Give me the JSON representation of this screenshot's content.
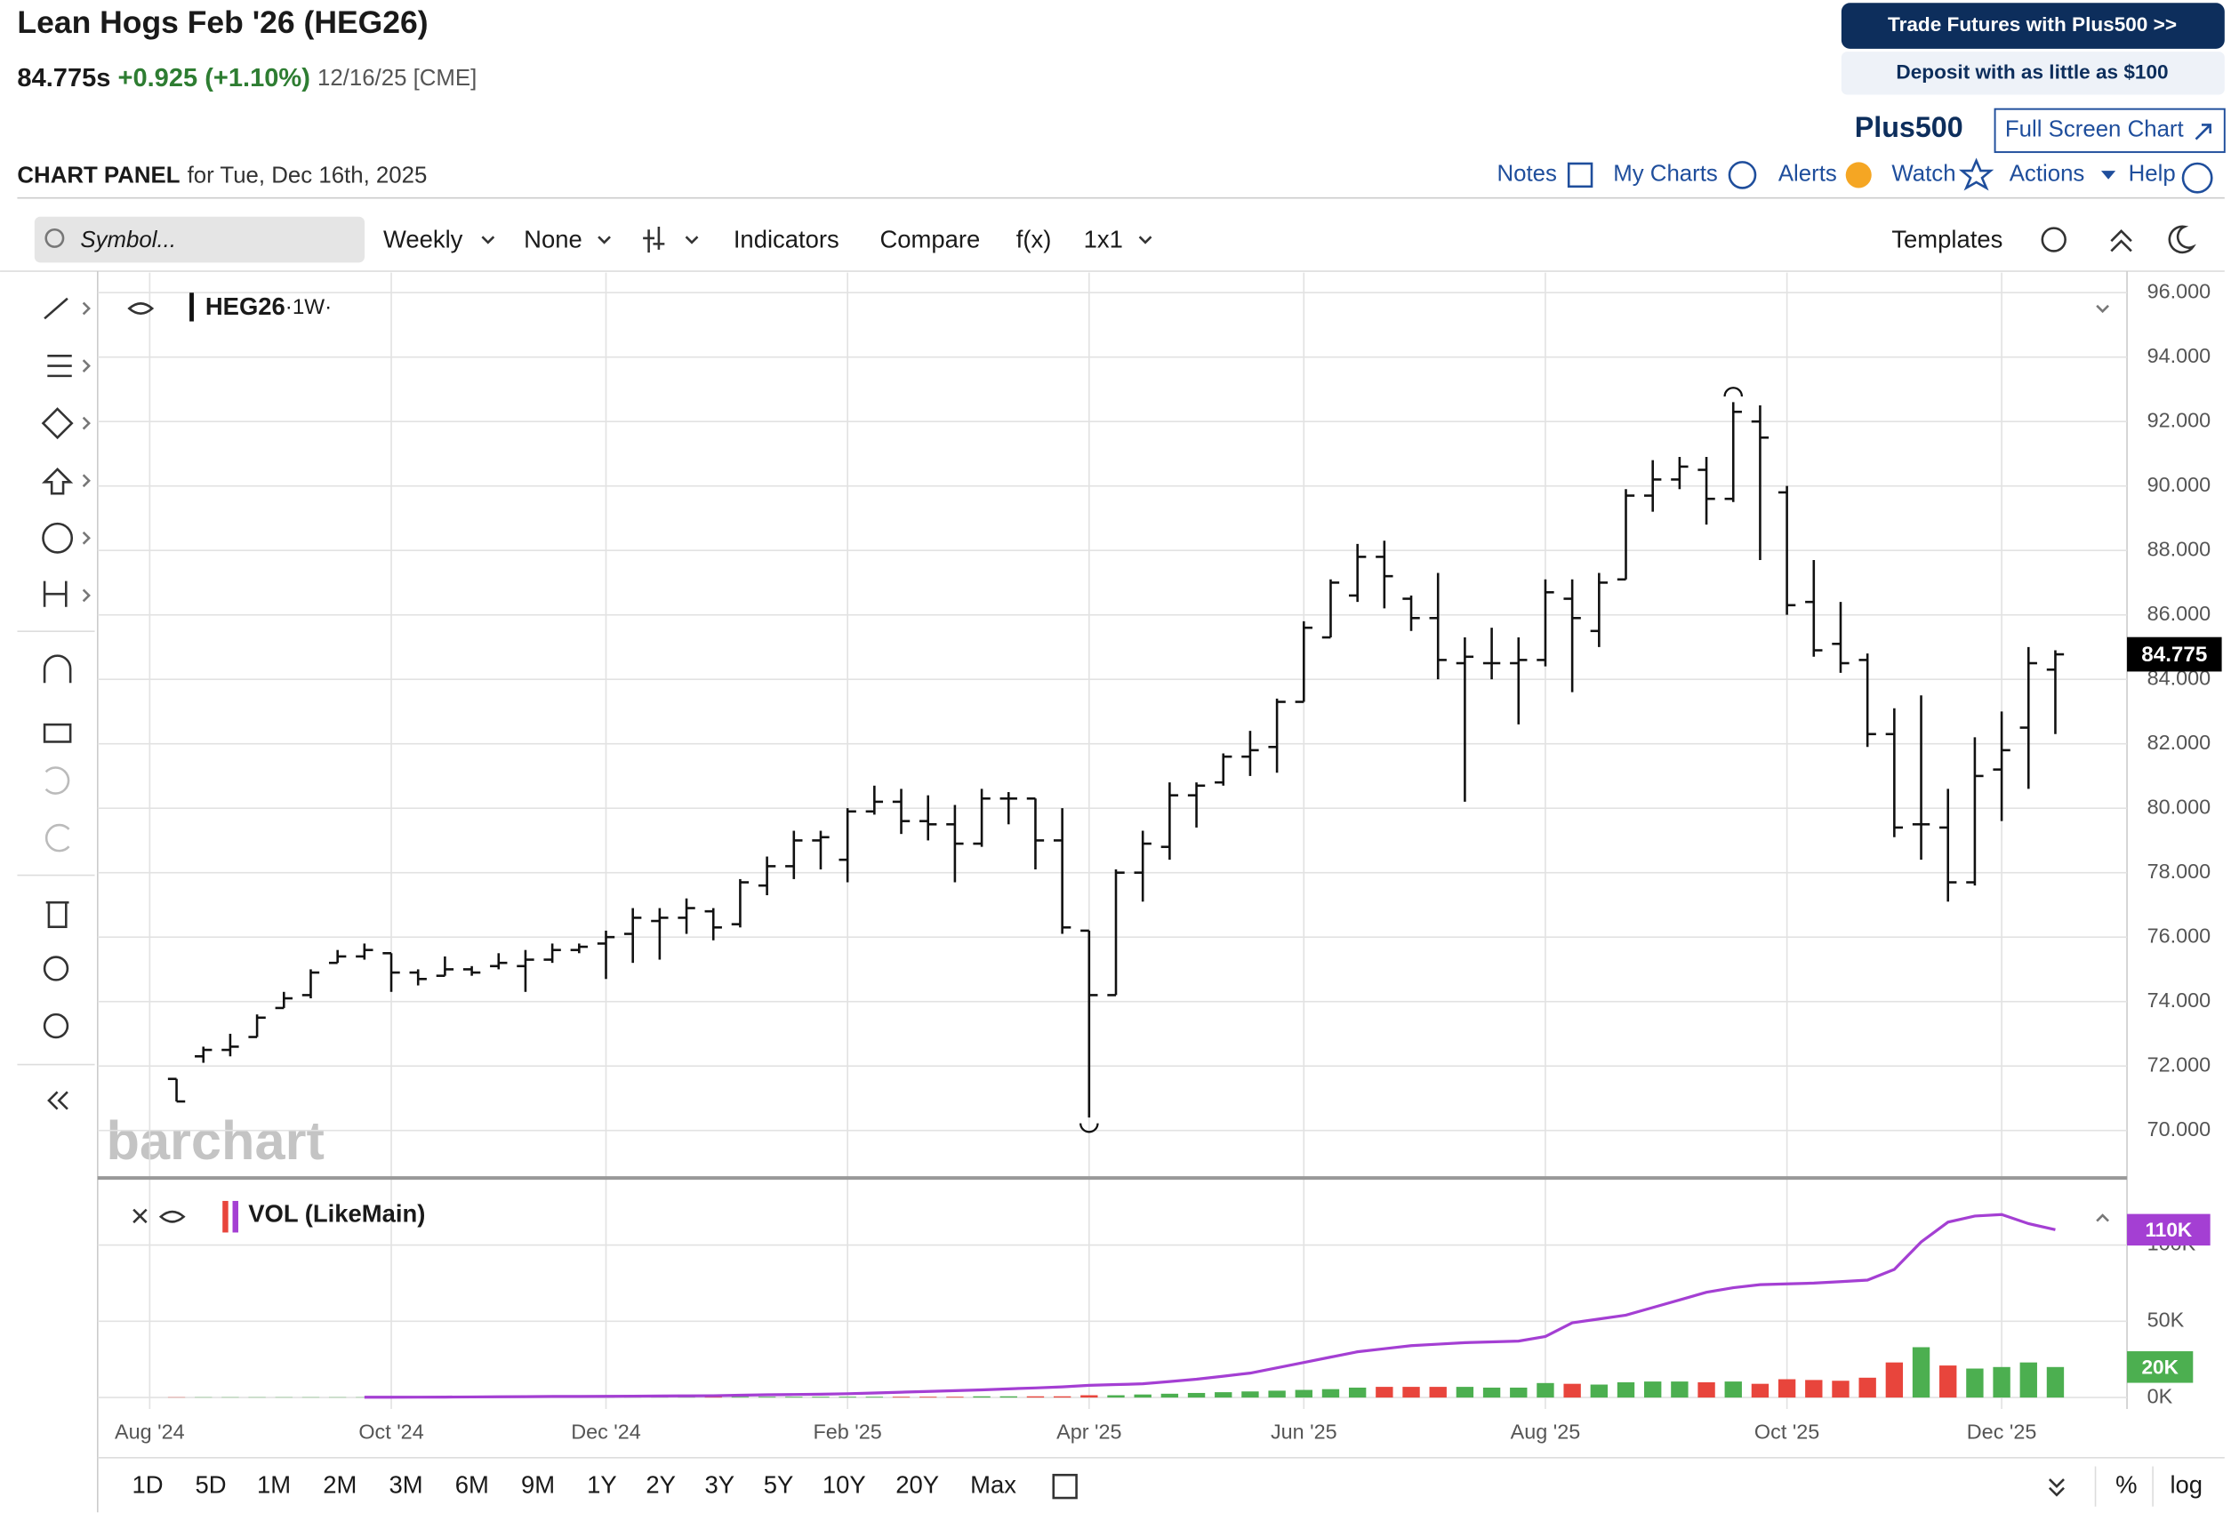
{
  "header": {
    "title": "Lean Hogs Feb '26 (HEG26)",
    "last": "84.775s",
    "change": "+0.925 (+1.10%)",
    "date": "12/16/25 [CME]"
  },
  "promo": {
    "trade": "Trade Futures with Plus500 >>",
    "deposit": "Deposit with as little as $100",
    "logo": "Plus500",
    "fullscreen": "Full Screen Chart"
  },
  "panel": {
    "label": "CHART PANEL",
    "date": "for Tue, Dec 16th, 2025",
    "nav": [
      "Notes",
      "My Charts",
      "Alerts",
      "Watch",
      "Actions",
      "Help"
    ]
  },
  "toolbar": {
    "search": "Symbol...",
    "items": [
      "Weekly",
      "None"
    ],
    "indicators": "Indicators",
    "compare": "Compare",
    "fx": "f(x)",
    "layout": "1x1",
    "templates": "Templates"
  },
  "watermark": "barchart",
  "ranges": [
    "1D",
    "5D",
    "1M",
    "2M",
    "3M",
    "6M",
    "9M",
    "1Y",
    "2Y",
    "3Y",
    "5Y",
    "10Y",
    "20Y",
    "Max"
  ],
  "percent": "%",
  "log": "log",
  "chart_data": [
    {
      "type": "ohlc",
      "symbol": "HEG26",
      "interval": "·1W·",
      "color": "#111111",
      "open": [
        71.6,
        72.3,
        72.5,
        72.9,
        73.8,
        74.2,
        75.2,
        75.4,
        75.5,
        74.9,
        74.8,
        75.0,
        75.1,
        75.1,
        75.3,
        75.6,
        75.8,
        76.1,
        76.5,
        76.6,
        76.8,
        76.4,
        77.6,
        78.2,
        79.0,
        78.4,
        79.9,
        80.2,
        79.6,
        79.5,
        78.9,
        80.3,
        80.3,
        79.0,
        76.2,
        74.2,
        78.0,
        78.8,
        80.4,
        80.8,
        81.6,
        81.9,
        83.3,
        85.3,
        86.6,
        87.8,
        86.5,
        85.9,
        84.5,
        84.5,
        84.5,
        84.6,
        86.5,
        85.5,
        87.1,
        89.7,
        90.2,
        90.5,
        89.6,
        92.0,
        89.8,
        86.4,
        85.1,
        84.6,
        82.3,
        79.5,
        79.4,
        77.7,
        81.2,
        82.5,
        84.3
      ],
      "high": [
        71.6,
        72.6,
        73.0,
        73.6,
        74.3,
        75.0,
        75.6,
        75.8,
        75.5,
        75.0,
        75.4,
        75.1,
        75.5,
        75.6,
        75.8,
        75.8,
        76.2,
        76.9,
        76.9,
        77.2,
        76.9,
        77.8,
        78.5,
        79.3,
        79.3,
        80.0,
        80.7,
        80.6,
        80.4,
        80.1,
        80.6,
        80.5,
        80.3,
        80.0,
        76.2,
        78.1,
        79.3,
        80.8,
        80.8,
        81.7,
        82.4,
        83.4,
        85.8,
        87.1,
        88.2,
        88.3,
        86.6,
        87.3,
        85.3,
        85.6,
        85.3,
        87.1,
        87.1,
        87.3,
        89.9,
        90.8,
        90.9,
        90.9,
        92.6,
        92.5,
        90.0,
        87.7,
        86.4,
        84.8,
        83.1,
        83.5,
        80.6,
        82.2,
        83.0,
        85.0,
        84.9
      ],
      "low": [
        70.9,
        72.1,
        72.3,
        72.9,
        73.8,
        74.1,
        75.2,
        75.3,
        74.3,
        74.5,
        74.8,
        74.8,
        75.0,
        74.3,
        75.2,
        75.5,
        74.7,
        75.2,
        75.3,
        76.1,
        75.9,
        76.3,
        77.3,
        77.8,
        78.1,
        77.7,
        79.8,
        79.2,
        79.0,
        77.7,
        78.8,
        79.5,
        78.1,
        76.1,
        70.4,
        74.2,
        77.1,
        78.4,
        79.4,
        80.7,
        81.0,
        81.1,
        83.3,
        85.3,
        86.4,
        86.2,
        85.5,
        84.0,
        80.2,
        84.0,
        82.6,
        84.4,
        83.6,
        85.0,
        87.1,
        89.2,
        89.9,
        88.8,
        89.5,
        87.7,
        86.0,
        84.7,
        84.2,
        81.9,
        79.1,
        78.4,
        77.1,
        77.6,
        79.6,
        80.6,
        82.3
      ],
      "close": [
        70.9,
        72.5,
        72.6,
        73.5,
        74.1,
        74.9,
        75.4,
        75.6,
        74.9,
        74.7,
        75.0,
        74.9,
        75.2,
        75.3,
        75.6,
        75.7,
        76.0,
        76.6,
        76.6,
        76.9,
        76.3,
        77.7,
        78.2,
        79.0,
        79.1,
        79.9,
        80.2,
        79.6,
        79.5,
        78.9,
        80.3,
        80.3,
        79.0,
        76.3,
        74.2,
        78.0,
        78.9,
        80.4,
        80.7,
        81.6,
        81.8,
        83.3,
        85.6,
        87.0,
        87.8,
        87.2,
        85.9,
        84.6,
        84.7,
        84.5,
        84.6,
        86.7,
        85.9,
        87.0,
        89.7,
        90.2,
        90.6,
        89.6,
        92.3,
        91.5,
        86.3,
        84.9,
        84.5,
        82.3,
        79.4,
        79.5,
        77.7,
        81.0,
        81.8,
        84.5,
        84.775
      ],
      "ylim": [
        68.57,
        96.62
      ],
      "yticks": [
        {
          "value": 70,
          "label": "70.000"
        },
        {
          "value": 72,
          "label": "72.000"
        },
        {
          "value": 74,
          "label": "74.000"
        },
        {
          "value": 76,
          "label": "76.000"
        },
        {
          "value": 78,
          "label": "78.000"
        },
        {
          "value": 80,
          "label": "80.000"
        },
        {
          "value": 82,
          "label": "82.000"
        },
        {
          "value": 84,
          "label": "84.000"
        },
        {
          "value": 86,
          "label": "86.000"
        },
        {
          "value": 88,
          "label": "88.000"
        },
        {
          "value": 90,
          "label": "90.000"
        },
        {
          "value": 92,
          "label": "92.000"
        },
        {
          "value": 94,
          "label": "94.000"
        },
        {
          "value": 96,
          "label": "96.000"
        }
      ],
      "xlim": [
        -2.94,
        72.67
      ],
      "xticks": [
        {
          "value": -1,
          "label": "Aug '24"
        },
        {
          "value": 8,
          "label": "Oct '24"
        },
        {
          "value": 16,
          "label": "Dec '24"
        },
        {
          "value": 25,
          "label": "Feb '25"
        },
        {
          "value": 34,
          "label": "Apr '25"
        },
        {
          "value": 42,
          "label": "Jun '25"
        },
        {
          "value": 51,
          "label": "Aug '25"
        },
        {
          "value": 60,
          "label": "Oct '25"
        },
        {
          "value": 68,
          "label": "Dec '25"
        }
      ],
      "grid": true
    },
    {
      "type": "bar",
      "title": "VOL (LikeMain)",
      "up_color": "#4caf50",
      "down_color": "#e8453c",
      "values": [
        200,
        200,
        200,
        200,
        200,
        200,
        200,
        200,
        200,
        200,
        300,
        300,
        300,
        300,
        300,
        300,
        300,
        300,
        300,
        300,
        500,
        500,
        500,
        500,
        500,
        500,
        500,
        500,
        500,
        500,
        800,
        800,
        800,
        800,
        1500,
        1500,
        2000,
        2500,
        3000,
        3500,
        4000,
        4500,
        5000,
        5500,
        6500,
        7000,
        7000,
        7000,
        7000,
        6500,
        6500,
        9500,
        9000,
        8500,
        10000,
        10500,
        10500,
        10000,
        10500,
        9000,
        12000,
        11500,
        11000,
        13000,
        23000,
        33000,
        21000,
        19000,
        20000,
        23000,
        20000
      ],
      "last_label": "20K",
      "lines": [
        {
          "color": "#a43fd3",
          "last_label": "110K",
          "values": [
            null,
            null,
            null,
            null,
            null,
            null,
            null,
            200,
            200,
            250,
            300,
            400,
            500,
            600,
            700,
            750,
            800,
            900,
            1000,
            1100,
            1200,
            1500,
            1800,
            2000,
            2200,
            2500,
            3000,
            3500,
            4000,
            4500,
            5000,
            5700,
            6300,
            7000,
            8000,
            8500,
            9000,
            10500,
            12000,
            14000,
            16000,
            19500,
            23000,
            26500,
            30000,
            32000,
            34000,
            35000,
            36000,
            36500,
            37000,
            40000,
            49000,
            51500,
            54000,
            59000,
            64000,
            69000,
            72000,
            74000,
            74500,
            75000,
            76000,
            77000,
            84000,
            102000,
            115000,
            119000,
            120000,
            114000,
            110000
          ]
        }
      ],
      "ylim": [
        -7500,
        143000
      ],
      "yticks": [
        {
          "value": 0,
          "label": "0K"
        },
        {
          "value": 50000,
          "label": "50K"
        },
        {
          "value": 100000,
          "label": "100K"
        }
      ]
    }
  ]
}
